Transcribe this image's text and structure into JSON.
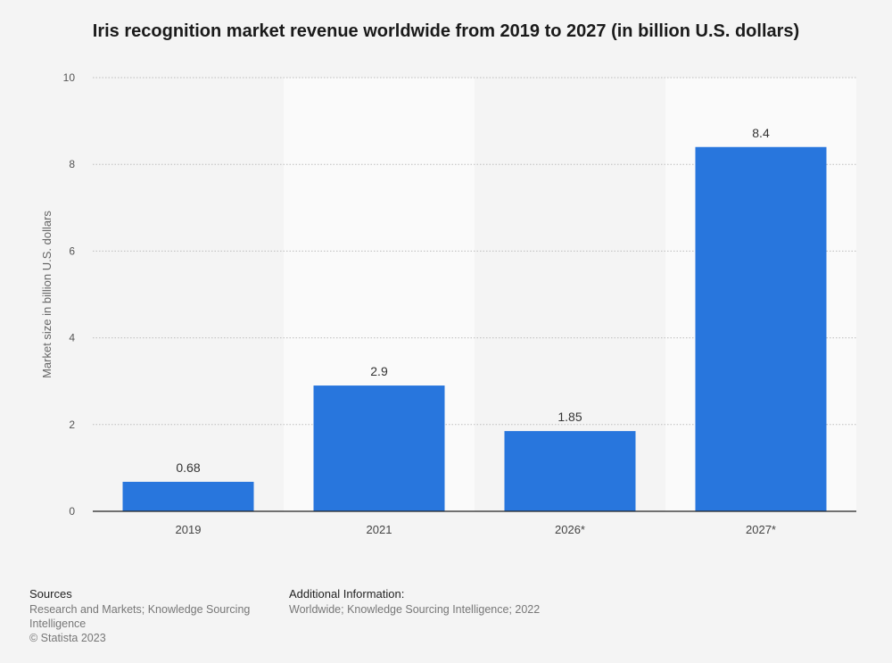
{
  "chart_data": {
    "type": "bar",
    "title": "Iris recognition market revenue worldwide from 2019 to 2027 (in billion U.S. dollars)",
    "categories": [
      "2019",
      "2021",
      "2026*",
      "2027*"
    ],
    "values": [
      0.68,
      2.9,
      1.85,
      8.4
    ],
    "value_labels": [
      "0.68",
      "2.9",
      "1.85",
      "8.4"
    ],
    "xlabel": "",
    "ylabel": "Market size in billion U.S. dollars",
    "ylim": [
      0,
      10
    ],
    "yticks": [
      0,
      2,
      4,
      6,
      8,
      10
    ],
    "grid": true,
    "bar_color": "#2876dd"
  },
  "footer": {
    "sources_heading": "Sources",
    "sources_text": "Research and Markets; Knowledge Sourcing Intelligence",
    "copyright": "© Statista 2023",
    "additional_heading": "Additional Information:",
    "additional_text": "Worldwide; Knowledge Sourcing Intelligence; 2022"
  }
}
